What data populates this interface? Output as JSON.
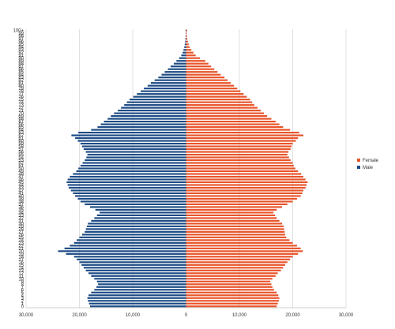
{
  "chart_data": {
    "type": "bar",
    "orientation": "horizontal",
    "layout": "population-pyramid",
    "categories": [
      "0",
      "1",
      "2",
      "3",
      "4",
      "5",
      "6",
      "7",
      "8",
      "9",
      "10",
      "11",
      "12",
      "13",
      "14",
      "15",
      "16",
      "17",
      "18",
      "19",
      "20",
      "21",
      "22",
      "23",
      "24",
      "25",
      "26",
      "27",
      "28",
      "29",
      "30",
      "31",
      "32",
      "33",
      "34",
      "35",
      "36",
      "37",
      "38",
      "39",
      "40",
      "41",
      "42",
      "43",
      "44",
      "45",
      "46",
      "47",
      "48",
      "49",
      "50",
      "51",
      "52",
      "53",
      "54",
      "55",
      "56",
      "57",
      "58",
      "59",
      "60",
      "61",
      "62",
      "63",
      "64",
      "65",
      "66",
      "67",
      "68",
      "69",
      "70",
      "71",
      "72",
      "73",
      "74",
      "75",
      "76",
      "77",
      "78",
      "79",
      "80",
      "81",
      "82",
      "83",
      "84",
      "85",
      "86",
      "87",
      "88",
      "89",
      "90",
      "91",
      "92",
      "93",
      "94",
      "95",
      "96",
      "97",
      "98",
      "99",
      "100+"
    ],
    "category_labels_shown": [
      "0",
      "1",
      "2",
      "3",
      "4",
      "5",
      "6",
      "7",
      "8",
      "9",
      "10",
      "11",
      "12",
      "13",
      "14",
      "15",
      "16",
      "17",
      "18",
      "19",
      "20",
      "21",
      "22",
      "23",
      "24",
      "25",
      "26",
      "27",
      "28",
      "29",
      "30",
      "31",
      "32",
      "33",
      "34",
      "35",
      "36",
      "37",
      "38",
      "39",
      "40",
      "41",
      "42",
      "43",
      "44",
      "45",
      "46",
      "47",
      "48",
      "49",
      "50",
      "51",
      "52",
      "53",
      "54",
      "55",
      "56",
      "57",
      "58",
      "59",
      "60",
      "61",
      "62",
      "63",
      "64",
      "65",
      "66",
      "67",
      "68",
      "69",
      "70",
      "71",
      "72",
      "73",
      "74",
      "75",
      "76",
      "77",
      "78",
      "79",
      "80",
      "81",
      "82",
      "83",
      "84",
      "85",
      "86",
      "87",
      "88",
      "89",
      "90",
      "91",
      "92",
      "93",
      "94",
      "95",
      "96",
      "97",
      "98",
      "99",
      "100+"
    ],
    "series": [
      {
        "name": "Female",
        "color": "#e8542a",
        "values": [
          17000,
          17200,
          17400,
          17500,
          17300,
          17000,
          16500,
          16200,
          16000,
          15800,
          16200,
          16800,
          17200,
          17800,
          18200,
          18600,
          19000,
          19500,
          20000,
          21000,
          21900,
          21500,
          20800,
          20000,
          19400,
          18800,
          18600,
          18500,
          18400,
          18300,
          18000,
          17500,
          17000,
          16700,
          16400,
          17000,
          18000,
          19000,
          20000,
          20800,
          21500,
          21800,
          22000,
          22400,
          22600,
          22800,
          22400,
          22000,
          21600,
          21000,
          20500,
          20200,
          20000,
          19600,
          19300,
          19000,
          19200,
          19600,
          19800,
          20000,
          20600,
          21000,
          22000,
          21200,
          19500,
          18200,
          17500,
          16800,
          16000,
          15200,
          14600,
          14000,
          13400,
          12800,
          12400,
          12000,
          11400,
          10800,
          10200,
          9600,
          9000,
          8400,
          7800,
          7200,
          6500,
          5900,
          5300,
          4700,
          4200,
          3600,
          2600,
          1800,
          1400,
          1000,
          700,
          500,
          350,
          250,
          180,
          120,
          200
        ]
      },
      {
        "name": "Male",
        "color": "#1c4b85",
        "values": [
          18000,
          18200,
          18400,
          18500,
          18300,
          17800,
          17200,
          16800,
          16500,
          16700,
          17200,
          17800,
          18300,
          18800,
          19200,
          19600,
          20000,
          20500,
          21000,
          22500,
          24000,
          22800,
          21800,
          21000,
          20500,
          20000,
          19500,
          19000,
          18800,
          18600,
          18400,
          17800,
          17200,
          16700,
          16200,
          17000,
          18000,
          19000,
          19800,
          20300,
          20800,
          21200,
          21600,
          22000,
          22200,
          22400,
          22200,
          21800,
          21200,
          20600,
          20200,
          19800,
          19400,
          19000,
          18700,
          18500,
          18800,
          19200,
          19500,
          19800,
          20300,
          20800,
          21500,
          20200,
          17800,
          16600,
          16000,
          15400,
          14700,
          14100,
          13500,
          12800,
          12200,
          11600,
          11100,
          10600,
          9900,
          9200,
          8500,
          7900,
          7200,
          6600,
          5900,
          5200,
          4600,
          4000,
          3400,
          2900,
          2300,
          1800,
          1300,
          900,
          650,
          480,
          340,
          240,
          170,
          120,
          80,
          50,
          90
        ]
      }
    ],
    "x_axis": {
      "tick_labels": [
        "30,000",
        "20,000",
        "10,000",
        "0",
        "10,000",
        "20,000",
        "30,000"
      ],
      "range": [
        -30000,
        30000
      ],
      "grid": true
    },
    "legend": {
      "placement": "right",
      "entries": [
        "Female",
        "Male"
      ]
    }
  }
}
